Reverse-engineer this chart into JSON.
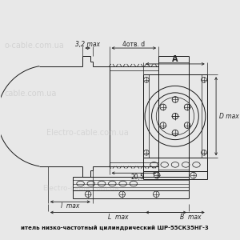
{
  "bg_color": "#e8e8e8",
  "line_color": "#1a1a1a",
  "dim_color": "#222222",
  "wm_color": "#aaaaaa",
  "dim_32_text": "3,2 max",
  "dim_4otv_text": "4отв. d",
  "dim_A_text": "A",
  "dim_D_text": "D max",
  "dim_205_text": "20,5",
  "dim_l_text": "l  max",
  "dim_L_text": "L  max",
  "dim_B_text": "B  max",
  "bottom_text": "итель низко-частотный цилиндрический ШР-55СК35НГ-3"
}
